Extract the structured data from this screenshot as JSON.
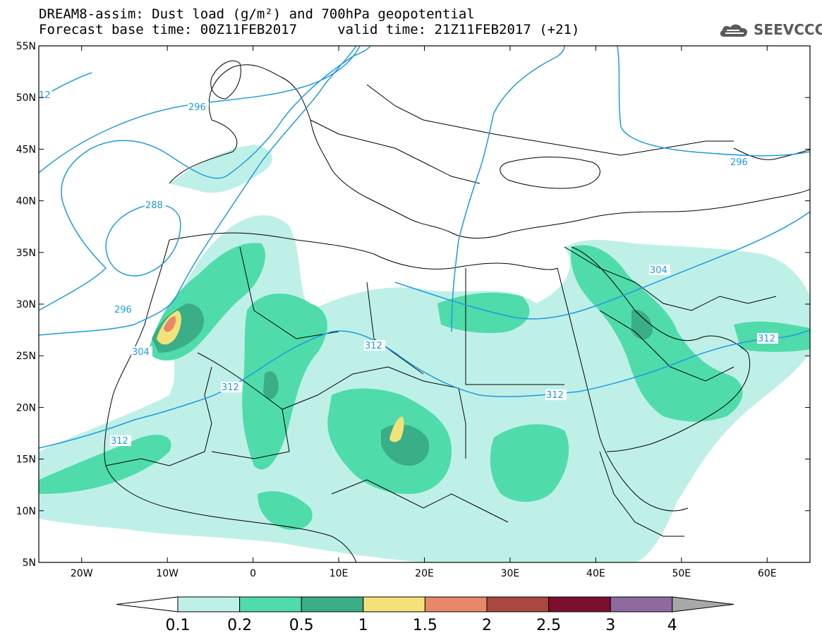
{
  "header": {
    "title_line1": "DREAM8-assim: Dust load (g/m²) and 700hPa geopotential",
    "title_line2": "Forecast base time: 00Z11FEB2017     valid time: 21Z11FEB2017 (+21)",
    "logo_text": "SEEVCCC",
    "logo_icon": "cloud-logo-icon"
  },
  "map": {
    "lat_labels": [
      "55N",
      "50N",
      "45N",
      "40N",
      "35N",
      "30N",
      "25N",
      "20N",
      "15N",
      "10N",
      "5N"
    ],
    "lon_labels": [
      "20W",
      "10W",
      "0",
      "10E",
      "20E",
      "30E",
      "40E",
      "50E",
      "60E"
    ],
    "lat_range": [
      5,
      55
    ],
    "lon_range": [
      -25,
      65
    ],
    "contour_labels": [
      "12",
      "296",
      "296",
      "288",
      "296",
      "304",
      "304",
      "312",
      "312",
      "312",
      "312",
      "312"
    ]
  },
  "colorbar": {
    "labels": [
      "0.1",
      "0.2",
      "0.5",
      "1",
      "1.5",
      "2",
      "2.5",
      "3",
      "4"
    ],
    "colors": [
      "#bff0e8",
      "#4fdcaa",
      "#3aae86",
      "#f2e279",
      "#e8876a",
      "#a8483e",
      "#7d0f2e",
      "#8e6aa0"
    ],
    "under_color": "#ffffff",
    "over_color": "#a8a8a8"
  },
  "colors": {
    "contour": "#1e9be0",
    "border": "#000000"
  }
}
